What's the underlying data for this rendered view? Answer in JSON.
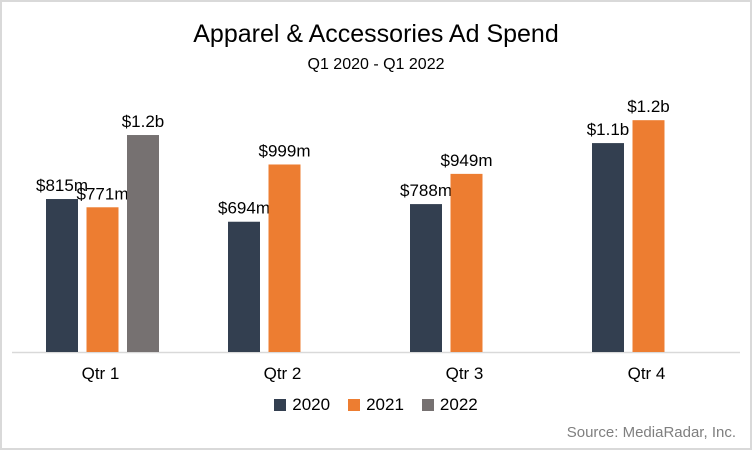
{
  "chart_data": {
    "type": "bar",
    "title": "Apparel & Accessories Ad Spend",
    "subtitle": "Q1 2020 - Q1 2022",
    "categories": [
      "Qtr 1",
      "Qtr 2",
      "Qtr 3",
      "Qtr 4"
    ],
    "series": [
      {
        "name": "2020",
        "color": "#333f50",
        "values": [
          815,
          694,
          788,
          1113
        ],
        "labels": [
          "$815m",
          "$694m",
          "$788m",
          "$1.1b"
        ]
      },
      {
        "name": "2021",
        "color": "#ed7d31",
        "values": [
          771,
          999,
          949,
          1235
        ],
        "labels": [
          "$771m",
          "$999m",
          "$949m",
          "$1.2b"
        ]
      },
      {
        "name": "2022",
        "color": "#767171",
        "values": [
          1156,
          null,
          null,
          null
        ],
        "labels": [
          "$1.2b",
          null,
          null,
          null
        ]
      }
    ],
    "value_units": "USD millions",
    "xlabel": "",
    "ylabel": "",
    "ylim": [
      0,
      1300
    ],
    "grid": false,
    "legend": "bottom",
    "source": "Source: MediaRadar, Inc."
  }
}
